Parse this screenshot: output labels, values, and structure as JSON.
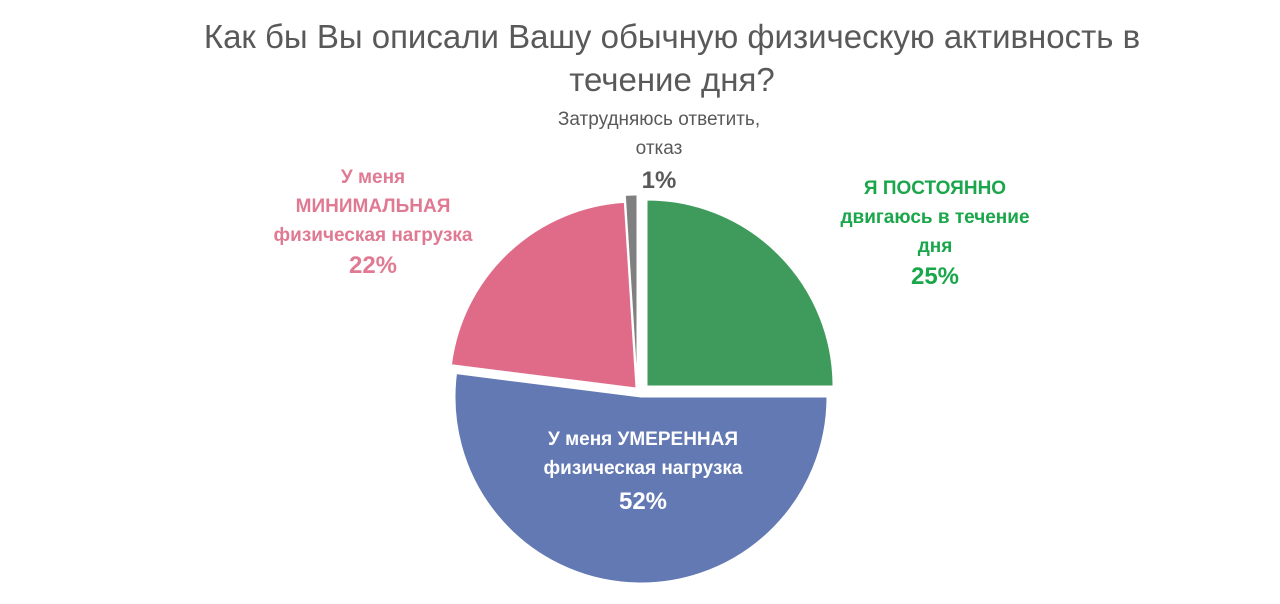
{
  "chart_data": {
    "type": "pie",
    "title_lines": [
      "Как бы Вы описали Вашу обычную физическую активность в",
      "течение дня?"
    ],
    "slices": [
      {
        "name": "Я ПОСТОЯННО двигаюсь в течение дня",
        "label_lines": [
          "Я ПОСТОЯННО",
          "двигаюсь в течение",
          "дня"
        ],
        "value": 25,
        "value_label": "25%",
        "color": "#3e9b5c",
        "label_color": "#1aa64a"
      },
      {
        "name": "У меня УМЕРЕННАЯ физическая нагрузка",
        "label_lines": [
          "У меня УМЕРЕННАЯ",
          "физическая нагрузка"
        ],
        "value": 52,
        "value_label": "52%",
        "color": "#6379b4",
        "label_color": "#ffffff"
      },
      {
        "name": "У меня МИНИМАЛЬНАЯ физическая нагрузка",
        "label_lines": [
          "У меня",
          "МИНИМАЛЬНАЯ",
          "физическая нагрузка"
        ],
        "value": 22,
        "value_label": "22%",
        "color": "#e06b88",
        "label_color": "#e07a92"
      },
      {
        "name": "Затрудняюсь ответить, отказ",
        "label_lines": [
          "Затрудняюсь ответить,",
          "отказ"
        ],
        "value": 1,
        "value_label": "1%",
        "color": "#808080",
        "label_color": "#595959"
      }
    ]
  }
}
